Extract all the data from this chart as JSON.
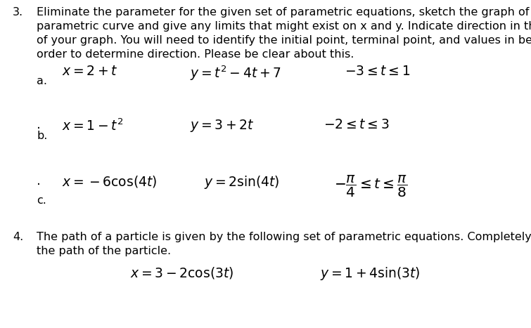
{
  "background_color": "#ffffff",
  "fs_body": 11.5,
  "fs_math": 13.5,
  "fs_label": 11.5,
  "problem3_label": "3.",
  "problem3_text_line1": "Eliminate the parameter for the given set of parametric equations, sketch the graph of the",
  "problem3_text_line2": "parametric curve and give any limits that might exist on x and y. Indicate direction in the sketch",
  "problem3_text_line3": "of your graph. You will need to identify the initial point, terminal point, and values in between in",
  "problem3_text_line4": "order to determine direction. Please be clear about this.",
  "part_a_label": "a.",
  "part_a_eq1": "$x = 2 + t$",
  "part_a_eq2": "$y = t^2 - 4t + 7$",
  "part_a_eq3": "$-3 \\leq t \\leq 1$",
  "part_b_label": "b.",
  "part_b_dot": ".",
  "part_b_eq1": "$x = 1 - t^2$",
  "part_b_eq2": "$y = 3 + 2t$",
  "part_b_eq3": "$-2 \\leq t \\leq 3$",
  "part_c_label": "c.",
  "part_c_dot": ".",
  "part_c_eq1": "$x = -6\\cos(4t)$",
  "part_c_eq2": "$y = 2\\sin(4t)$",
  "part_c_eq3": "$-\\dfrac{\\pi}{4} \\leq t \\leq \\dfrac{\\pi}{8}$",
  "problem4_label": "4.",
  "problem4_text_line1": "The path of a particle is given by the following set of parametric equations. Completely describe",
  "problem4_text_line2": "the path of the particle.",
  "part4_eq1": "$x = 3 - 2\\cos(3t)$",
  "part4_eq2": "$y = 1 + 4\\sin(3t)$",
  "fig_width": 7.55,
  "fig_height": 4.67,
  "dpi": 100
}
